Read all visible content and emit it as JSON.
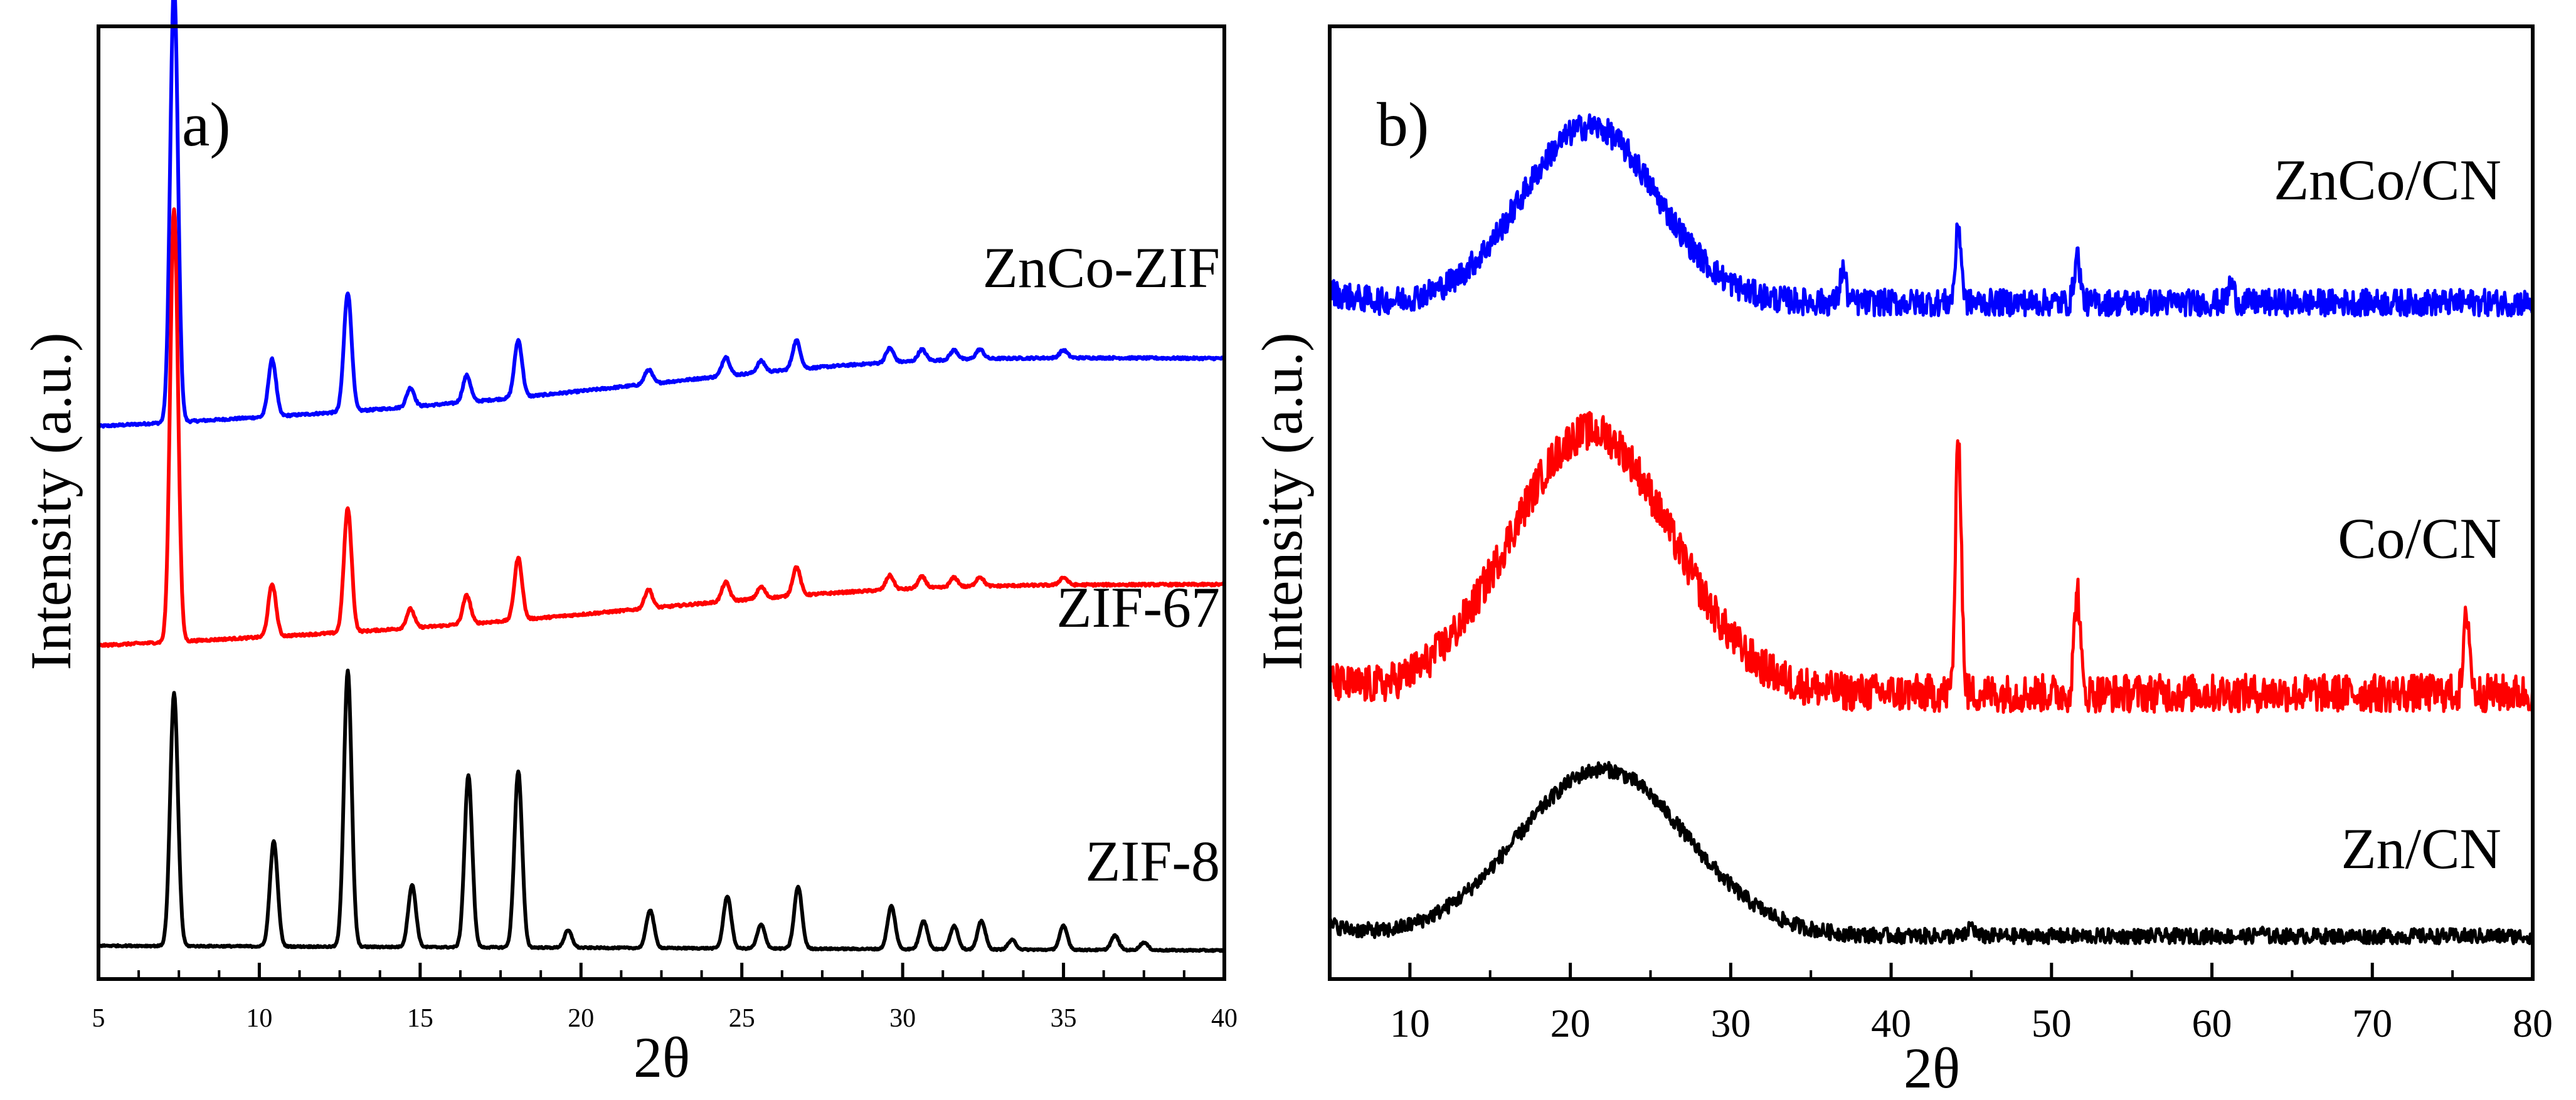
{
  "chart_data": [
    {
      "type": "line",
      "panel": "a)",
      "xlabel": "2θ",
      "ylabel": "Intensity (a.u.)",
      "xlim": [
        5,
        40
      ],
      "xticks": [
        5,
        10,
        15,
        20,
        25,
        30,
        35,
        40
      ],
      "xtick_labels": [
        "5",
        "10",
        "15",
        "20",
        "25",
        "30",
        "35",
        "40"
      ],
      "ylim": [
        0,
        10
      ],
      "y_ticks_shown": false,
      "grid": false,
      "series": [
        {
          "name": "ZnCo-ZIF",
          "color": "#0000ff",
          "baseline_start": 5.8,
          "baseline_end": 6.4,
          "background_bump": 0.25,
          "peaks": [
            [
              7.35,
              4.6
            ],
            [
              10.4,
              0.6
            ],
            [
              12.75,
              1.25
            ],
            [
              14.7,
              0.2
            ],
            [
              16.45,
              0.28
            ],
            [
              18.05,
              0.6
            ],
            [
              22.1,
              0.15
            ],
            [
              24.5,
              0.2
            ],
            [
              25.6,
              0.12
            ],
            [
              26.7,
              0.3
            ],
            [
              29.6,
              0.15
            ],
            [
              30.6,
              0.12
            ],
            [
              31.6,
              0.1
            ],
            [
              32.4,
              0.1
            ],
            [
              35.0,
              0.08
            ]
          ],
          "noise": 0.012
        },
        {
          "name": "ZIF-67",
          "color": "#ff0000",
          "baseline_start": 3.5,
          "baseline_end": 4.05,
          "background_bump": 0.2,
          "peaks": [
            [
              7.35,
              4.55
            ],
            [
              10.4,
              0.55
            ],
            [
              12.75,
              1.3
            ],
            [
              14.7,
              0.2
            ],
            [
              16.45,
              0.3
            ],
            [
              18.05,
              0.65
            ],
            [
              22.1,
              0.2
            ],
            [
              24.5,
              0.2
            ],
            [
              25.6,
              0.12
            ],
            [
              26.7,
              0.3
            ],
            [
              29.6,
              0.15
            ],
            [
              30.6,
              0.12
            ],
            [
              31.6,
              0.1
            ],
            [
              32.4,
              0.1
            ],
            [
              35.0,
              0.08
            ]
          ],
          "noise": 0.012
        },
        {
          "name": "ZIF-8",
          "color": "#000000",
          "baseline_start": 0.35,
          "baseline_end": 0.3,
          "background_bump": 0.0,
          "peaks": [
            [
              7.35,
              2.65
            ],
            [
              10.45,
              1.1
            ],
            [
              12.75,
              2.9
            ],
            [
              14.75,
              0.65
            ],
            [
              16.5,
              1.8
            ],
            [
              18.05,
              1.85
            ],
            [
              19.6,
              0.18
            ],
            [
              22.15,
              0.4
            ],
            [
              24.55,
              0.55
            ],
            [
              25.6,
              0.25
            ],
            [
              26.75,
              0.65
            ],
            [
              29.65,
              0.45
            ],
            [
              30.65,
              0.3
            ],
            [
              31.6,
              0.25
            ],
            [
              32.45,
              0.3
            ],
            [
              33.4,
              0.1
            ],
            [
              35.0,
              0.25
            ],
            [
              36.6,
              0.15
            ],
            [
              37.5,
              0.08
            ]
          ],
          "noise": 0.008
        }
      ]
    },
    {
      "type": "line",
      "panel": "b)",
      "xlabel": "2θ",
      "ylabel": "Intensity (a.u.)",
      "xlim": [
        5,
        80
      ],
      "xticks": [
        10,
        20,
        30,
        40,
        50,
        60,
        70,
        80
      ],
      "xtick_labels": [
        "10",
        "20",
        "30",
        "40",
        "50",
        "60",
        "70",
        "80"
      ],
      "ylim": [
        0,
        10
      ],
      "y_ticks_shown": false,
      "grid": false,
      "series": [
        {
          "name": "ZnCo/CN",
          "color": "#0000ff",
          "baseline": 7.1,
          "hump_center": 21.2,
          "hump_height": 1.85,
          "hump_width": 4.2,
          "peaks": [
            [
              37.0,
              0.35
            ],
            [
              44.2,
              0.8
            ],
            [
              51.6,
              0.5
            ],
            [
              61.2,
              0.2
            ]
          ],
          "noise": 0.14
        },
        {
          "name": "Co/CN",
          "color": "#ff0000",
          "baseline": 3.0,
          "hump_center": 21.3,
          "hump_height": 2.75,
          "hump_width": 5.0,
          "peaks": [
            [
              44.2,
              2.7
            ],
            [
              51.6,
              1.1
            ],
            [
              75.9,
              0.85
            ]
          ],
          "noise": 0.2
        },
        {
          "name": "Zn/CN",
          "color": "#000000",
          "baseline": 0.45,
          "hump_center": 22.0,
          "hump_height": 1.75,
          "hump_width": 5.2,
          "peaks": [
            [
              45.0,
              0.12
            ],
            [
              63.0,
              0.05
            ]
          ],
          "noise": 0.08
        }
      ]
    }
  ]
}
